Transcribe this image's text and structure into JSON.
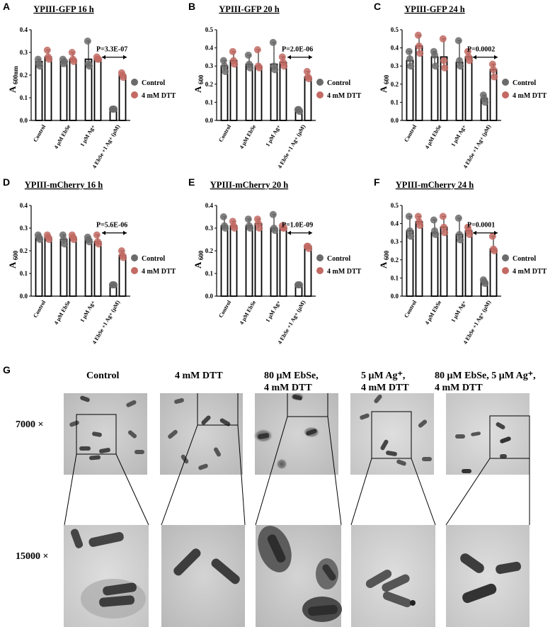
{
  "chart_data": [
    {
      "panel": "A",
      "type": "bar",
      "title": "YPIII-GFP 16 h",
      "ylabel": "A",
      "ylabel_sub": "600nm",
      "ylim": [
        0,
        0.4
      ],
      "yticks": [
        "0.0",
        "0.1",
        "0.2",
        "0.3",
        "0.4"
      ],
      "categories": [
        "Control",
        "4 μM EbSe",
        "1 μM Ag+",
        "4 EbSe +1 Ag+ (μM)"
      ],
      "series": [
        {
          "name": "Control",
          "values": [
            0.26,
            0.26,
            0.27,
            0.05
          ],
          "points": [
            [
              0.27,
              0.25,
              0.24
            ],
            [
              0.27,
              0.25,
              0.26
            ],
            [
              0.35,
              0.25,
              0.24
            ],
            [
              0.05,
              0.05,
              0.05
            ]
          ]
        },
        {
          "name": "4 mM DTT",
          "values": [
            0.28,
            0.27,
            0.27,
            0.2
          ],
          "points": [
            [
              0.31,
              0.28,
              0.27
            ],
            [
              0.3,
              0.27,
              0.26
            ],
            [
              0.28,
              0.27,
              0.27
            ],
            [
              0.21,
              0.2,
              0.19
            ]
          ]
        }
      ],
      "pvalue": "P=3.3E-07"
    },
    {
      "panel": "B",
      "type": "bar",
      "title": "YPIII-GFP 20 h",
      "ylabel": "A",
      "ylabel_sub": "600",
      "ylim": [
        0,
        0.5
      ],
      "yticks": [
        "0.0",
        "0.1",
        "0.2",
        "0.3",
        "0.4",
        "0.5"
      ],
      "categories": [
        "Control",
        "4 μM EbSe",
        "1 μM Ag+",
        "4 EbSe +1 Ag+ (μM)"
      ],
      "series": [
        {
          "name": "Control",
          "values": [
            0.3,
            0.31,
            0.31,
            0.06
          ],
          "points": [
            [
              0.33,
              0.3,
              0.27
            ],
            [
              0.36,
              0.31,
              0.29
            ],
            [
              0.43,
              0.3,
              0.28
            ],
            [
              0.06,
              0.06,
              0.05
            ]
          ]
        },
        {
          "name": "4 mM DTT",
          "values": [
            0.33,
            0.3,
            0.32,
            0.24
          ],
          "points": [
            [
              0.38,
              0.33,
              0.31
            ],
            [
              0.39,
              0.3,
              0.29
            ],
            [
              0.35,
              0.32,
              0.3
            ],
            [
              0.27,
              0.24,
              0.23
            ]
          ]
        }
      ],
      "pvalue": "P=2.0E-06"
    },
    {
      "panel": "C",
      "type": "bar",
      "title": "YPIII-GFP 24 h",
      "ylabel": "A",
      "ylabel_sub": "600",
      "ylim": [
        0,
        0.5
      ],
      "yticks": [
        "0.0",
        "0.1",
        "0.2",
        "0.3",
        "0.4",
        "0.5"
      ],
      "categories": [
        "Control",
        "4 μM EbSe",
        "1 μM Ag+",
        "4 EbSe +1 Ag+ (μM)"
      ],
      "series": [
        {
          "name": "Control",
          "values": [
            0.33,
            0.35,
            0.32,
            0.12
          ],
          "points": [
            [
              0.38,
              0.34,
              0.3
            ],
            [
              0.38,
              0.36,
              0.3
            ],
            [
              0.44,
              0.33,
              0.3
            ],
            [
              0.14,
              0.12,
              0.1
            ]
          ]
        },
        {
          "name": "4 mM DTT",
          "values": [
            0.41,
            0.35,
            0.35,
            0.28
          ],
          "points": [
            [
              0.47,
              0.41,
              0.37
            ],
            [
              0.45,
              0.33,
              0.29
            ],
            [
              0.38,
              0.35,
              0.33
            ],
            [
              0.31,
              0.28,
              0.24
            ]
          ]
        }
      ],
      "pvalue": "P=0.0002"
    },
    {
      "panel": "D",
      "type": "bar",
      "title": "YPIII-mCherry 16 h",
      "ylabel": "A",
      "ylabel_sub": "600",
      "ylim": [
        0,
        0.4
      ],
      "yticks": [
        "0.0",
        "0.1",
        "0.2",
        "0.3",
        "0.4"
      ],
      "categories": [
        "Control",
        "4 μM EbSe",
        "1 μM Ag+",
        "4 EbSe +1 Ag+ (μM)"
      ],
      "series": [
        {
          "name": "Control",
          "values": [
            0.26,
            0.25,
            0.25,
            0.05
          ],
          "points": [
            [
              0.27,
              0.26,
              0.25
            ],
            [
              0.27,
              0.25,
              0.23
            ],
            [
              0.26,
              0.25,
              0.24
            ],
            [
              0.05,
              0.05,
              0.05
            ]
          ]
        },
        {
          "name": "4 mM DTT",
          "values": [
            0.26,
            0.26,
            0.24,
            0.18
          ],
          "points": [
            [
              0.27,
              0.26,
              0.25
            ],
            [
              0.27,
              0.26,
              0.25
            ],
            [
              0.27,
              0.24,
              0.23
            ],
            [
              0.2,
              0.18,
              0.17
            ]
          ]
        }
      ],
      "pvalue": "P=5.6E-06"
    },
    {
      "panel": "E",
      "type": "bar",
      "title": "YPIII-mCherry 20 h",
      "ylabel": "A",
      "ylabel_sub": "600",
      "ylim": [
        0,
        0.4
      ],
      "yticks": [
        "0.0",
        "0.1",
        "0.2",
        "0.3",
        "0.4"
      ],
      "categories": [
        "Control",
        "4 μM EbSe",
        "1 μM Ag+",
        "4 EbSe +1 Ag+ (μM)"
      ],
      "series": [
        {
          "name": "Control",
          "values": [
            0.31,
            0.31,
            0.3,
            0.05
          ],
          "points": [
            [
              0.35,
              0.31,
              0.3
            ],
            [
              0.34,
              0.31,
              0.3
            ],
            [
              0.36,
              0.3,
              0.29
            ],
            [
              0.05,
              0.05,
              0.05
            ]
          ]
        },
        {
          "name": "4 mM DTT",
          "values": [
            0.31,
            0.32,
            0.3,
            0.22
          ],
          "points": [
            [
              0.33,
              0.31,
              0.3
            ],
            [
              0.34,
              0.32,
              0.3
            ],
            [
              0.31,
              0.3,
              0.3
            ],
            [
              0.22,
              0.22,
              0.21
            ]
          ]
        }
      ],
      "pvalue": "P=1.0E-09"
    },
    {
      "panel": "F",
      "type": "bar",
      "title": "YPIII-mCherry 24 h",
      "ylabel": "A",
      "ylabel_sub": "600",
      "ylim": [
        0,
        0.5
      ],
      "yticks": [
        "0.0",
        "0.1",
        "0.2",
        "0.3",
        "0.4",
        "0.5"
      ],
      "categories": [
        "Control",
        "4 μM EbSe",
        "1 μM Ag+",
        "4 EbSe +1 Ag+ (μM)"
      ],
      "series": [
        {
          "name": "Control",
          "values": [
            0.36,
            0.35,
            0.34,
            0.08
          ],
          "points": [
            [
              0.44,
              0.36,
              0.33
            ],
            [
              0.42,
              0.36,
              0.34
            ],
            [
              0.43,
              0.34,
              0.31
            ],
            [
              0.09,
              0.08,
              0.07
            ]
          ]
        },
        {
          "name": "4 mM DTT",
          "values": [
            0.41,
            0.38,
            0.36,
            0.26
          ],
          "points": [
            [
              0.44,
              0.41,
              0.39
            ],
            [
              0.44,
              0.38,
              0.35
            ],
            [
              0.38,
              0.36,
              0.34
            ],
            [
              0.33,
              0.26,
              0.25
            ]
          ]
        }
      ],
      "pvalue": "P=0.0001"
    }
  ],
  "legend": {
    "control": "Control",
    "dtt": "4 mM DTT"
  },
  "colors": {
    "control": "#6b6b6b",
    "dtt": "#c26a63",
    "bar": "#000000"
  },
  "panel_g": {
    "letter": "G",
    "columns": [
      {
        "title": "Control"
      },
      {
        "title": "4 mM DTT"
      },
      {
        "title": "80 μM EbSe,\n4 mM DTT"
      },
      {
        "title": "5 μM Ag⁺,\n4 mM DTT"
      },
      {
        "title": "80 μM EbSe, 5 μM Ag⁺,\n4 mM DTT"
      }
    ],
    "magnifications": [
      "7000 ×",
      "15000 ×"
    ]
  }
}
